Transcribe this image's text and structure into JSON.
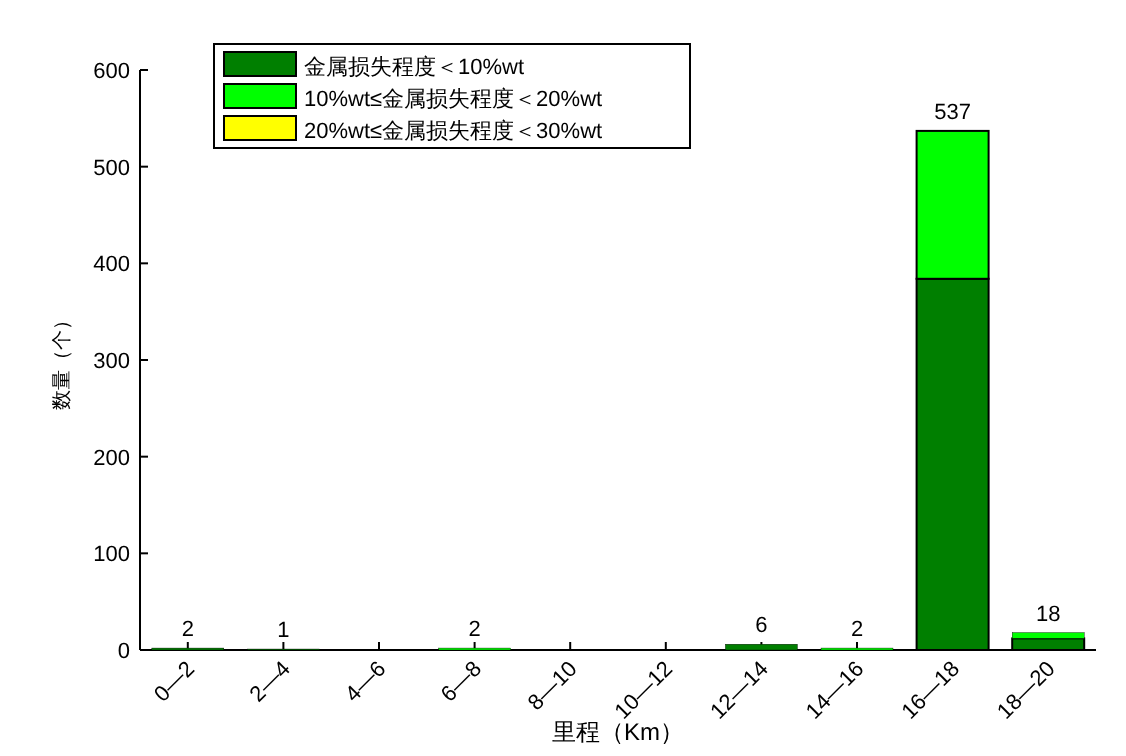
{
  "chart_data": {
    "type": "bar",
    "stacked": true,
    "xlabel": "里程（Km）",
    "ylabel": "数量（个）",
    "categories": [
      "0—2",
      "2—4",
      "4—6",
      "6—8",
      "8—10",
      "10—12",
      "12—14",
      "14—16",
      "16—18",
      "18—20"
    ],
    "ylim": [
      0,
      600
    ],
    "yticks": [
      0,
      100,
      200,
      300,
      400,
      500,
      600
    ],
    "legend": "top left",
    "totals": [
      "2",
      "1",
      null,
      "2",
      null,
      null,
      "6",
      "2",
      "537",
      "18"
    ],
    "series": [
      {
        "name": "金属损失程度＜10%wt",
        "color": "#007f00",
        "values": [
          2,
          1,
          0,
          0,
          0,
          0,
          6,
          0,
          384,
          12
        ]
      },
      {
        "name": "10%wt≤金属损失程度＜20%wt",
        "color": "#00ff00",
        "values": [
          0,
          0,
          0,
          2,
          0,
          0,
          0,
          2,
          153,
          6
        ]
      },
      {
        "name": "20%wt≤金属损失程度＜30%wt",
        "color": "#ffff00",
        "values": [
          0,
          0,
          0,
          0,
          0,
          0,
          0,
          0,
          0,
          0
        ]
      }
    ]
  }
}
